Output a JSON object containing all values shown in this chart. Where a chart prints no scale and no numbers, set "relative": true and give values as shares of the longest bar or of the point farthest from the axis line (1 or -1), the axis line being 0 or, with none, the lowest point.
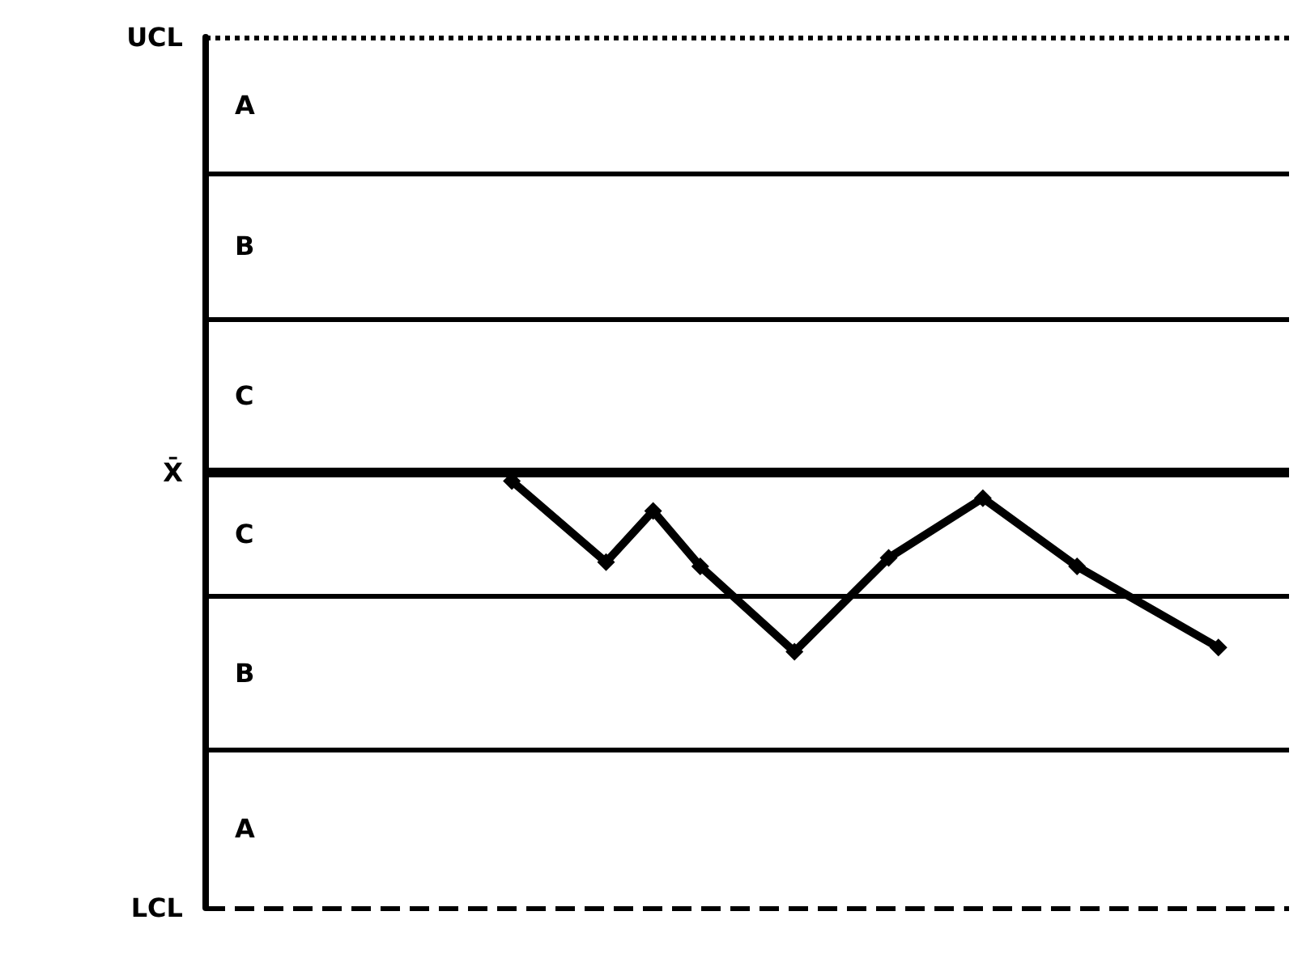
{
  "chart_data": {
    "type": "line",
    "relative": true,
    "categories": [
      null,
      null,
      null,
      null,
      null,
      null,
      null,
      null,
      null,
      null,
      null,
      null,
      null,
      null,
      null,
      null,
      null,
      null,
      null,
      null,
      null,
      null,
      null
    ],
    "series": [
      {
        "color": "#000000",
        "values": [
          null,
          null,
          null,
          null,
          null,
          null,
          1,
          null,
          0.81,
          0.93,
          0.8,
          null,
          0.6,
          null,
          0.82,
          null,
          0.96,
          null,
          0.8,
          null,
          null,
          0.61,
          null
        ]
      }
    ],
    "marker": "diamond",
    "line_style": "solid",
    "grid": false,
    "ref_lines": [
      {
        "axis": "y",
        "value": 2.04,
        "label": "UCL",
        "line_style": "dotted",
        "color": "#000000"
      },
      {
        "axis": "y",
        "value": 1.72,
        "color": "#000000"
      },
      {
        "axis": "y",
        "value": 1.38,
        "color": "#000000"
      },
      {
        "axis": "y",
        "value": 1.02,
        "label": "X̄",
        "color": "#000000"
      },
      {
        "axis": "y",
        "value": 0.73,
        "color": "#000000"
      },
      {
        "axis": "y",
        "value": 0.37,
        "color": "#000000"
      },
      {
        "axis": "y",
        "value": 0,
        "label": "LCL",
        "line_style": "dashed",
        "color": "#000000"
      }
    ],
    "annotations": [
      "A",
      "B",
      "C",
      "C",
      "B",
      "A"
    ]
  }
}
